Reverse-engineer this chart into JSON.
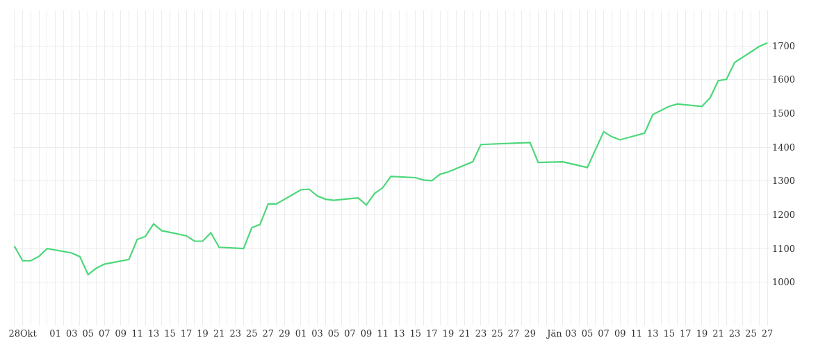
{
  "chart_data": {
    "type": "line",
    "categories": [
      null,
      "28Okt",
      null,
      null,
      null,
      "01",
      null,
      "03",
      null,
      "05",
      null,
      "07",
      null,
      "09",
      null,
      "11",
      null,
      "13",
      null,
      "15",
      null,
      "17",
      null,
      "19",
      null,
      "21",
      null,
      "23",
      null,
      "25",
      null,
      "27",
      null,
      "29",
      null,
      "01",
      null,
      "03",
      null,
      "05",
      null,
      "07",
      null,
      "09",
      null,
      "11",
      null,
      "13",
      null,
      "15",
      null,
      "17",
      null,
      "19",
      null,
      "21",
      null,
      "23",
      null,
      "25",
      null,
      "27",
      null,
      "29",
      null,
      null,
      "Jän",
      null,
      "03",
      null,
      "05",
      null,
      "07",
      null,
      "09",
      null,
      "11",
      null,
      "13",
      null,
      "15",
      null,
      "17",
      null,
      "19",
      null,
      "21",
      null,
      "23",
      null,
      "25",
      null,
      "27"
    ],
    "series": [
      {
        "color": "#4cd77a",
        "values": [
          1107,
          1064,
          1064,
          1077,
          1100,
          null,
          null,
          1087,
          1076,
          1023,
          1042,
          1054,
          null,
          null,
          1068,
          1127,
          1136,
          1173,
          1153,
          null,
          null,
          1138,
          1122,
          1122,
          1147,
          1104,
          null,
          null,
          1100,
          1162,
          1171,
          1232,
          1232,
          null,
          null,
          1274,
          1276,
          1256,
          1246,
          1243,
          null,
          null,
          1250,
          1229,
          1263,
          1280,
          1314,
          null,
          null,
          1310,
          1303,
          1301,
          1320,
          1327,
          null,
          null,
          1357,
          1408,
          null,
          null,
          null,
          null,
          null,
          1414,
          1355,
          null,
          null,
          1357,
          null,
          null,
          1340,
          null,
          1446,
          1431,
          1422,
          null,
          null,
          1442,
          1497,
          null,
          1521,
          1528,
          null,
          null,
          1521,
          1546,
          1597,
          1601,
          1651,
          null,
          null,
          1698,
          1709
        ]
      }
    ],
    "ylim": [
      895,
      1805
    ],
    "yticks": [
      1000,
      1100,
      1200,
      1300,
      1400,
      1500,
      1600,
      1700
    ],
    "grid": true,
    "marker": "none",
    "line_style": "solid"
  }
}
